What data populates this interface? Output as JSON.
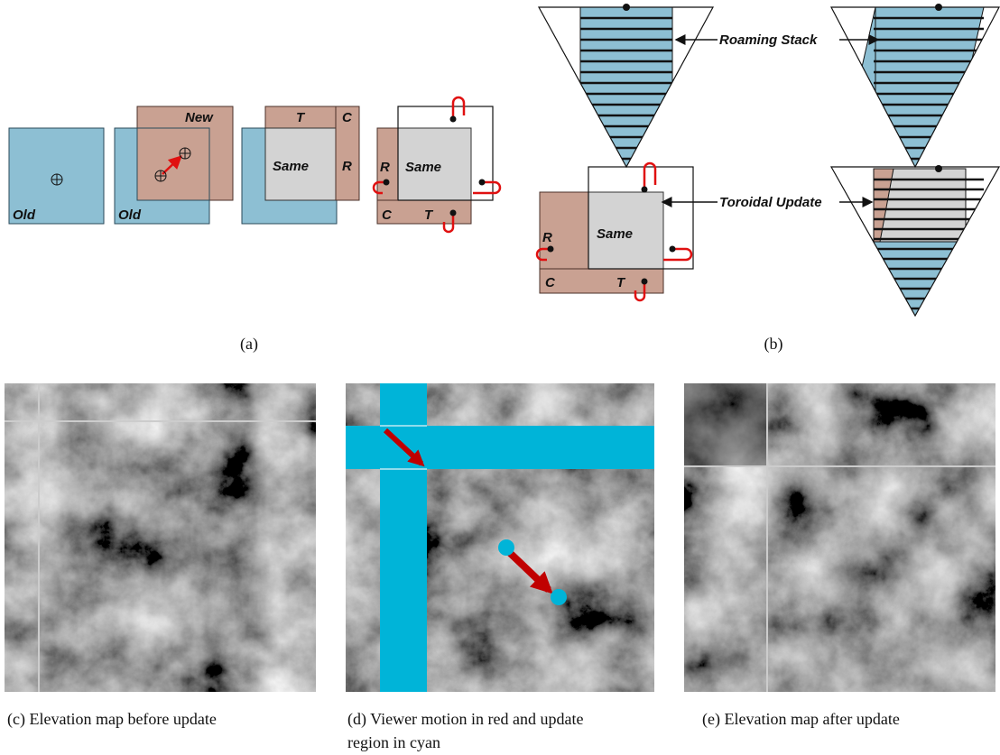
{
  "panel_a": {
    "tile_1": {
      "old": "Old"
    },
    "tile_2": {
      "new": "New",
      "old": "Old"
    },
    "tile_3": {
      "top": "T",
      "corner": "C",
      "same": "Same",
      "right": "R"
    },
    "tile_4": {
      "right": "R",
      "same": "Same",
      "corner": "C",
      "top": "T"
    },
    "caption": "(a)"
  },
  "panel_b": {
    "roaming_stack": "Roaming Stack",
    "toroidal_update": "Toroidal Update",
    "tile": {
      "right": "R",
      "same": "Same",
      "corner": "C",
      "top": "T"
    },
    "caption": "(b)"
  },
  "panel_c": {
    "caption": "(c)  Elevation map before update"
  },
  "panel_d": {
    "caption_line_1": "(d)  Viewer motion in red and update",
    "caption_line_2": "region in cyan"
  },
  "panel_e": {
    "caption": "(e)  Elevation map after update"
  }
}
